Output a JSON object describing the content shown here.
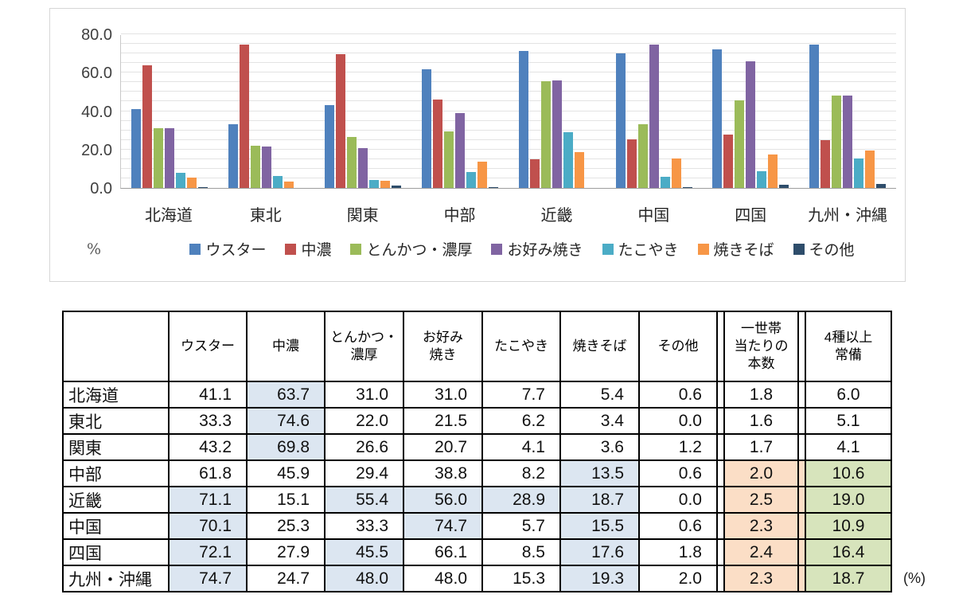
{
  "chart_data": {
    "type": "bar",
    "title": "",
    "ylabel": "%",
    "ylim": [
      0,
      80
    ],
    "ytick_values": [
      0,
      20,
      40,
      60,
      80
    ],
    "ytick_labels": [
      "0.0",
      "20.0",
      "40.0",
      "60.0",
      "80.0"
    ],
    "grid_step": 5,
    "grid": true,
    "legend_position": "bottom",
    "categories": [
      "北海道",
      "東北",
      "関東",
      "中部",
      "近畿",
      "中国",
      "四国",
      "九州・沖縄"
    ],
    "series": [
      {
        "name": "ウスター",
        "color": "#4f81bd",
        "values": [
          41.1,
          33.3,
          43.2,
          61.8,
          71.1,
          70.1,
          72.1,
          74.7
        ]
      },
      {
        "name": "中濃",
        "color": "#c0504d",
        "values": [
          63.7,
          74.6,
          69.8,
          45.9,
          15.1,
          25.3,
          27.9,
          24.7
        ]
      },
      {
        "name": "とんかつ・濃厚",
        "color": "#9bbb59",
        "values": [
          31.0,
          22.0,
          26.6,
          29.4,
          55.4,
          33.3,
          45.5,
          48.0
        ]
      },
      {
        "name": "お好み焼き",
        "color": "#8064a2",
        "values": [
          31.0,
          21.5,
          20.7,
          38.8,
          56.0,
          74.7,
          66.1,
          48.0
        ]
      },
      {
        "name": "たこやき",
        "color": "#4bacc6",
        "values": [
          7.7,
          6.2,
          4.1,
          8.2,
          28.9,
          5.7,
          8.5,
          15.3
        ]
      },
      {
        "name": "焼きそば",
        "color": "#f79646",
        "values": [
          5.4,
          3.4,
          3.6,
          13.5,
          18.7,
          15.5,
          17.6,
          19.3
        ]
      },
      {
        "name": "その他",
        "color": "#2e4d6b",
        "values": [
          0.6,
          0.0,
          1.2,
          0.6,
          0.0,
          0.6,
          1.8,
          2.0
        ]
      }
    ]
  },
  "table": {
    "unit_label": "(%)",
    "columns": [
      "",
      "ウスター",
      "中濃",
      "とんかつ・\n濃厚",
      "お好み\n焼き",
      "たこやき",
      "焼きそば",
      "その他",
      "一世帯\n当たりの\n本数",
      "4種以上\n常備"
    ],
    "rows": [
      {
        "region": "北海道",
        "values": [
          41.1,
          63.7,
          31.0,
          31.0,
          7.7,
          5.4,
          0.6
        ],
        "hl": [
          1
        ],
        "bonsu": 1.8,
        "bonsu_hl": false,
        "jobi": 6.0,
        "jobi_hl": false
      },
      {
        "region": "東北",
        "values": [
          33.3,
          74.6,
          22.0,
          21.5,
          6.2,
          3.4,
          0.0
        ],
        "hl": [
          1
        ],
        "bonsu": 1.6,
        "bonsu_hl": false,
        "jobi": 5.1,
        "jobi_hl": false
      },
      {
        "region": "関東",
        "values": [
          43.2,
          69.8,
          26.6,
          20.7,
          4.1,
          3.6,
          1.2
        ],
        "hl": [
          1
        ],
        "bonsu": 1.7,
        "bonsu_hl": false,
        "jobi": 4.1,
        "jobi_hl": false
      },
      {
        "region": "中部",
        "values": [
          61.8,
          45.9,
          29.4,
          38.8,
          8.2,
          13.5,
          0.6
        ],
        "hl": [
          5
        ],
        "bonsu": 2.0,
        "bonsu_hl": true,
        "jobi": 10.6,
        "jobi_hl": true
      },
      {
        "region": "近畿",
        "values": [
          71.1,
          15.1,
          55.4,
          56.0,
          28.9,
          18.7,
          0.0
        ],
        "hl": [
          0,
          2,
          3,
          4,
          5
        ],
        "bonsu": 2.5,
        "bonsu_hl": true,
        "jobi": 19.0,
        "jobi_hl": true
      },
      {
        "region": "中国",
        "values": [
          70.1,
          25.3,
          33.3,
          74.7,
          5.7,
          15.5,
          0.6
        ],
        "hl": [
          0,
          3,
          5
        ],
        "bonsu": 2.3,
        "bonsu_hl": true,
        "jobi": 10.9,
        "jobi_hl": true
      },
      {
        "region": "四国",
        "values": [
          72.1,
          27.9,
          45.5,
          66.1,
          8.5,
          17.6,
          1.8
        ],
        "hl": [
          0,
          2,
          5
        ],
        "bonsu": 2.4,
        "bonsu_hl": true,
        "jobi": 16.4,
        "jobi_hl": true
      },
      {
        "region": "九州・沖縄",
        "values": [
          74.7,
          24.7,
          48.0,
          48.0,
          15.3,
          19.3,
          2.0
        ],
        "hl": [
          0,
          2,
          5
        ],
        "bonsu": 2.3,
        "bonsu_hl": true,
        "jobi": 18.7,
        "jobi_hl": true
      }
    ]
  },
  "colors": {
    "highlight_blue": "#dce6f1",
    "highlight_peach": "#fbdec6",
    "highlight_green": "#d7e4bc",
    "gridline": "#e3e3e3",
    "chart_border": "#d6d6d6"
  }
}
